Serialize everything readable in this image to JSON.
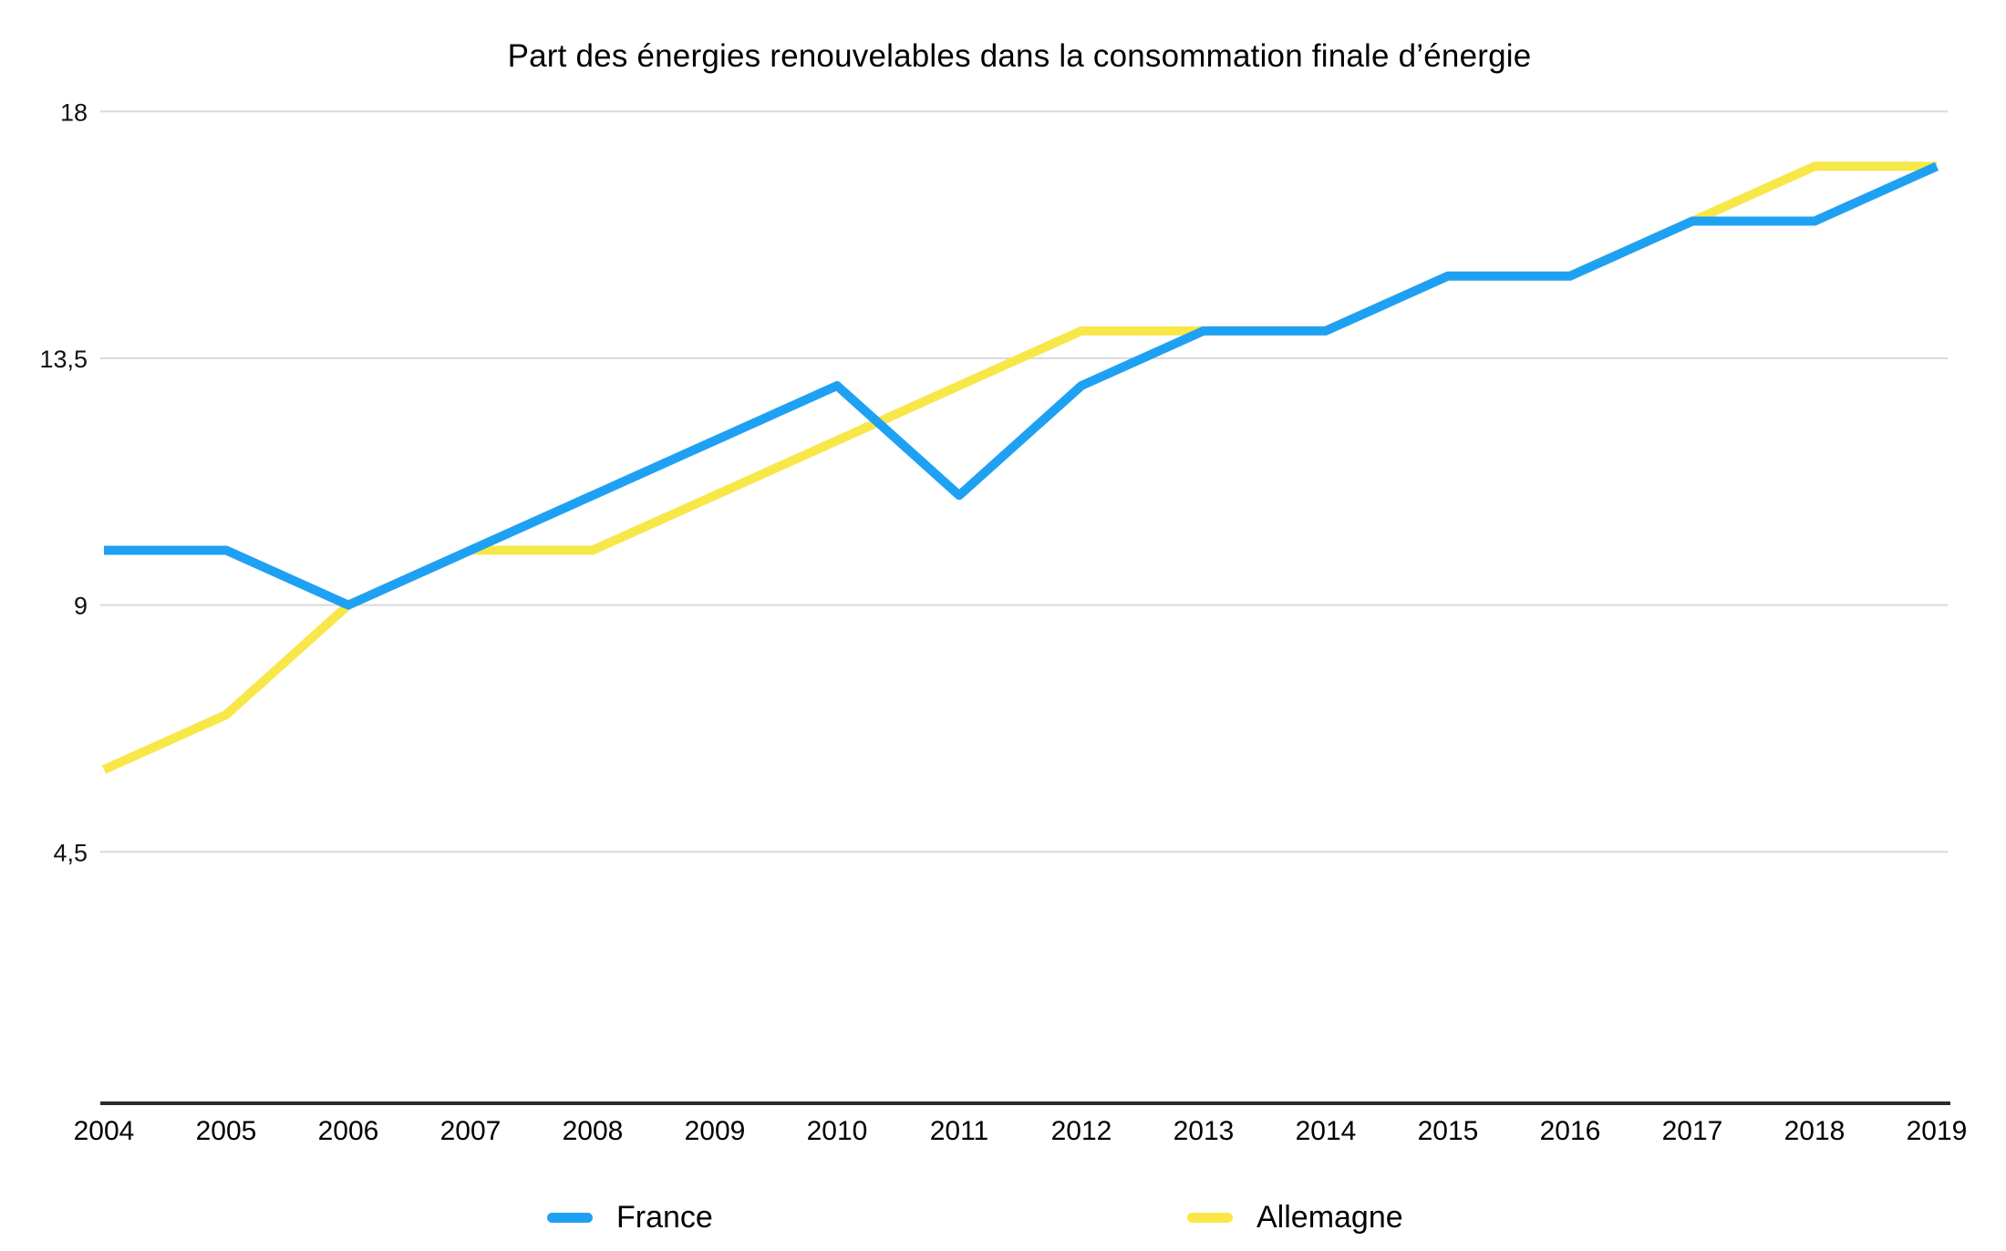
{
  "title": "Part des énergies renouvelables dans la consommation finale d’énergie",
  "chart_data": {
    "type": "line",
    "title": "Part des énergies renouvelables dans la consommation finale d’énergie",
    "categories": [
      "2004",
      "2005",
      "2006",
      "2007",
      "2008",
      "2009",
      "2010",
      "2011",
      "2012",
      "2013",
      "2014",
      "2015",
      "2016",
      "2017",
      "2018",
      "2019"
    ],
    "series": [
      {
        "name": "France",
        "color": "#1FA1F3",
        "values": [
          10,
          10,
          9,
          10,
          11,
          12,
          13,
          11,
          13,
          14,
          14,
          15,
          15,
          16,
          16,
          17
        ]
      },
      {
        "name": "Allemagne",
        "color": "#F8E748",
        "values": [
          6,
          7,
          9,
          10,
          10,
          11,
          12,
          13,
          14,
          14,
          14,
          15,
          15,
          16,
          17,
          17
        ]
      }
    ],
    "y_ticks": [
      {
        "value": 18,
        "label": "18"
      },
      {
        "value": 13.5,
        "label": "13,5"
      },
      {
        "value": 9,
        "label": "9"
      },
      {
        "value": 4.5,
        "label": "4,5"
      }
    ],
    "ylim": [
      4.5,
      18
    ],
    "grid": "horizontal",
    "legend_position": "bottom",
    "xlabel": "",
    "ylabel": ""
  },
  "style_colors": {
    "gridline": "#D9D9D9",
    "axis_line": "#2B2B2B",
    "tick_text": "#111111",
    "background": "#FFFFFF"
  }
}
